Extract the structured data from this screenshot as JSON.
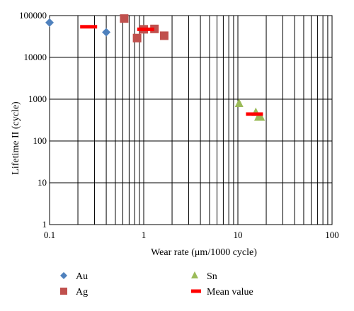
{
  "chart_data": {
    "type": "scatter",
    "xlabel": "Wear rate (μm/1000 cycle)",
    "ylabel": "Lifetime II (cycle)",
    "x_scale": "log",
    "y_scale": "log",
    "xlim": [
      0.1,
      100
    ],
    "ylim": [
      1,
      100000
    ],
    "grid": true,
    "x_ticks": [
      "0.1",
      "1",
      "10",
      "100"
    ],
    "y_ticks": [
      "1",
      "10",
      "100",
      "1000",
      "10000",
      "100000"
    ],
    "legend_position": "bottom",
    "series": [
      {
        "name": "Au",
        "marker": "diamond",
        "color": "#4f81bd",
        "points": [
          [
            0.1,
            68000
          ],
          [
            0.4,
            40000
          ]
        ]
      },
      {
        "name": "Ag",
        "marker": "square",
        "color": "#c0504d",
        "points": [
          [
            0.62,
            85000
          ],
          [
            0.85,
            29000
          ],
          [
            1.0,
            47000
          ],
          [
            1.3,
            48000
          ],
          [
            1.65,
            33000
          ]
        ]
      },
      {
        "name": "Sn",
        "marker": "triangle",
        "color": "#9bbb59",
        "points": [
          [
            10.3,
            790
          ],
          [
            15.5,
            480
          ],
          [
            16.5,
            370
          ],
          [
            17.5,
            370
          ]
        ]
      },
      {
        "name": "Mean value",
        "marker": "dash",
        "color": "#ff0000",
        "points": [
          [
            0.26,
            54000
          ],
          [
            1.05,
            47000
          ],
          [
            15.0,
            440
          ]
        ]
      }
    ]
  }
}
